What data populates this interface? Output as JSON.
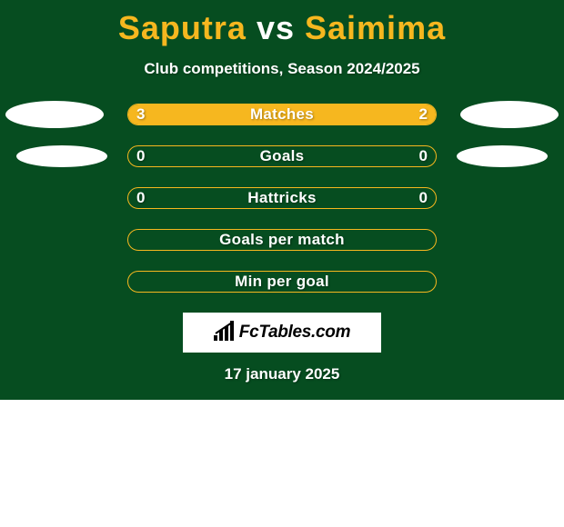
{
  "background_color": "#064d20",
  "accent_color": "#f6b71f",
  "track_border_color": "#f6b71f",
  "left_fill_color": "#f6b71f",
  "right_fill_color": "#f6b71f",
  "title": {
    "left_name": "Saputra",
    "separator": "vs",
    "right_name": "Saimima",
    "name_color": "#f6b71f",
    "fontsize": 36
  },
  "subtitle": "Club competitions, Season 2024/2025",
  "stats": [
    {
      "label": "Matches",
      "left_value": "3",
      "right_value": "2",
      "left_pct": 60,
      "right_pct": 40,
      "show_left_ellipse": true,
      "show_right_ellipse": true,
      "ellipse_size": "large"
    },
    {
      "label": "Goals",
      "left_value": "0",
      "right_value": "0",
      "left_pct": 0,
      "right_pct": 0,
      "show_left_ellipse": true,
      "show_right_ellipse": true,
      "ellipse_size": "small"
    },
    {
      "label": "Hattricks",
      "left_value": "0",
      "right_value": "0",
      "left_pct": 0,
      "right_pct": 0,
      "show_left_ellipse": false,
      "show_right_ellipse": false
    },
    {
      "label": "Goals per match",
      "left_value": "",
      "right_value": "",
      "left_pct": 0,
      "right_pct": 0,
      "show_left_ellipse": false,
      "show_right_ellipse": false
    },
    {
      "label": "Min per goal",
      "left_value": "",
      "right_value": "",
      "left_pct": 0,
      "right_pct": 0,
      "show_left_ellipse": false,
      "show_right_ellipse": false
    }
  ],
  "logo_text": "FcTables.com",
  "date": "17 january 2025"
}
